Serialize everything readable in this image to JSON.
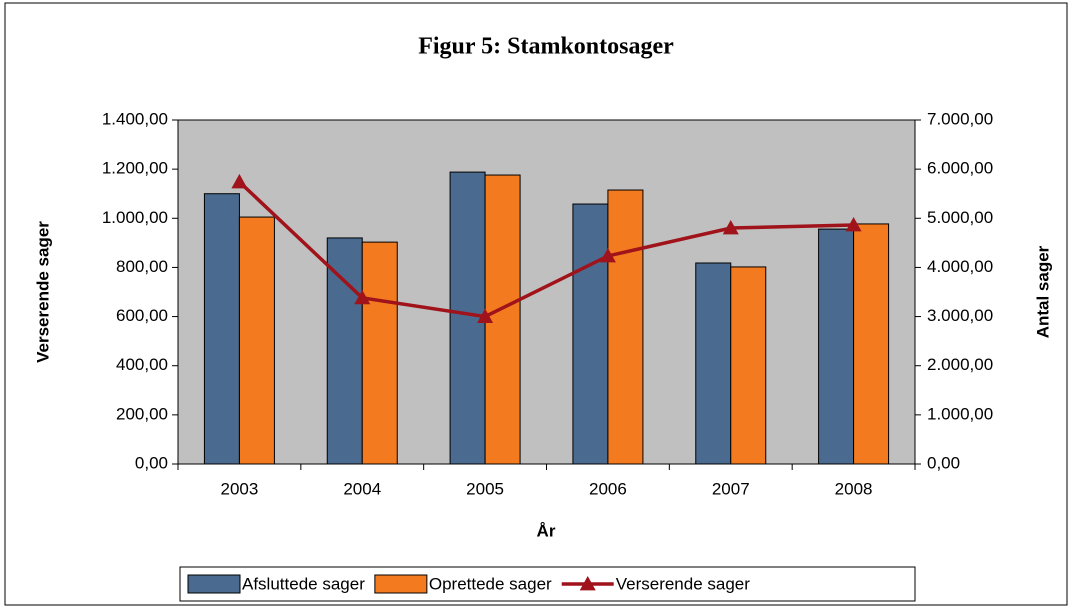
{
  "chart_data": {
    "type": "bar_line",
    "title": "Figur 5: Stamkontosager",
    "xlabel": "År",
    "ylabel": "Verserende sager",
    "y2label": "Antal sager",
    "categories": [
      "2003",
      "2004",
      "2005",
      "2006",
      "2007",
      "2008"
    ],
    "series": [
      {
        "name": "Afsluttede sager",
        "type": "bar",
        "color": "#4a6a8f",
        "values": [
          1100,
          920,
          1188,
          1058,
          818,
          956
        ]
      },
      {
        "name": "Oprettede sager",
        "type": "bar",
        "color": "#f47a20",
        "values": [
          1005,
          903,
          1176,
          1115,
          802,
          977
        ]
      },
      {
        "name": "Verserende sager",
        "type": "line",
        "axis": "y2",
        "color": "#a0131a",
        "values": [
          5740,
          3380,
          3000,
          4233,
          4802,
          4863
        ]
      }
    ],
    "ylim": [
      0,
      1400
    ],
    "yticks": [
      {
        "value": 0,
        "label": "0,00"
      },
      {
        "value": 200,
        "label": "200,00"
      },
      {
        "value": 400,
        "label": "400,00"
      },
      {
        "value": 600,
        "label": "600,00"
      },
      {
        "value": 800,
        "label": "800,00"
      },
      {
        "value": 1000,
        "label": "1.000,00"
      },
      {
        "value": 1200,
        "label": "1.200,00"
      },
      {
        "value": 1400,
        "label": "1.400,00"
      }
    ],
    "y2lim": [
      0,
      7000
    ],
    "y2ticks": [
      {
        "value": 0,
        "label": "0,00"
      },
      {
        "value": 1000,
        "label": "1.000,00"
      },
      {
        "value": 2000,
        "label": "2.000,00"
      },
      {
        "value": 3000,
        "label": "3.000,00"
      },
      {
        "value": 4000,
        "label": "4.000,00"
      },
      {
        "value": 5000,
        "label": "5.000,00"
      },
      {
        "value": 6000,
        "label": "6.000,00"
      },
      {
        "value": 7000,
        "label": "7.000,00"
      }
    ],
    "plot_background": "#c0c0c0",
    "legend": "bottom"
  }
}
